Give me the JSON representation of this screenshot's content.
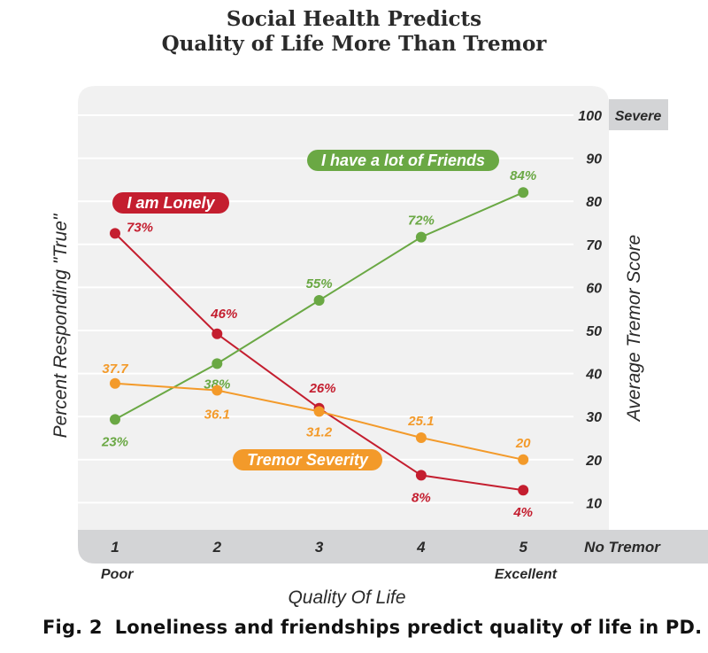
{
  "title_lines": [
    "Social Health Predicts",
    "Quality of Life More Than Tremor"
  ],
  "caption": {
    "fig_label": "Fig. 2",
    "text": "Loneliness and friendships predict quality of life in PD."
  },
  "colors": {
    "panel": "#f1f1f1",
    "band": "#d3d4d6",
    "grid": "#ffffff",
    "lonely": "#c41e2f",
    "friends": "#6aa844",
    "tremor": "#f39a2a",
    "text": "#2a2a2a"
  },
  "chart_data": {
    "type": "line",
    "title": "Social Health Predicts Quality of Life More Than Tremor",
    "xlabel": "Quality Of Life",
    "ylabel_left": "Percent Responding \"True\"",
    "ylabel_right": "Average Tremor Score",
    "x": [
      1,
      2,
      3,
      4,
      5
    ],
    "x_tick_labels": [
      "1",
      "2",
      "3",
      "4",
      "5"
    ],
    "x_end_labels": {
      "low": "Poor",
      "high": "Excellent"
    },
    "right_axis": {
      "ylim": [
        0,
        100
      ],
      "ticks": [
        10,
        20,
        30,
        40,
        50,
        60,
        70,
        80,
        90,
        100
      ],
      "top_label": "Severe",
      "bottom_label": "No Tremor"
    },
    "left_axis": {
      "ylim": [
        0,
        100
      ],
      "ticks": []
    },
    "grid": true,
    "series": [
      {
        "name": "I am Lonely",
        "axis": "left",
        "color": "#c41e2f",
        "values": [
          73,
          46,
          26,
          8,
          4
        ],
        "labels": [
          "73%",
          "46%",
          "26%",
          "8%",
          "4%"
        ]
      },
      {
        "name": "I have a lot of Friends",
        "axis": "left",
        "color": "#6aa844",
        "values": [
          23,
          38,
          55,
          72,
          84
        ],
        "labels": [
          "23%",
          "38%",
          "55%",
          "72%",
          "84%"
        ]
      },
      {
        "name": "Tremor Severity",
        "axis": "right",
        "color": "#f39a2a",
        "values": [
          37.7,
          36.1,
          31.2,
          25.1,
          20
        ],
        "labels": [
          "37.7",
          "36.1",
          "31.2",
          "25.1",
          "20"
        ]
      }
    ]
  }
}
